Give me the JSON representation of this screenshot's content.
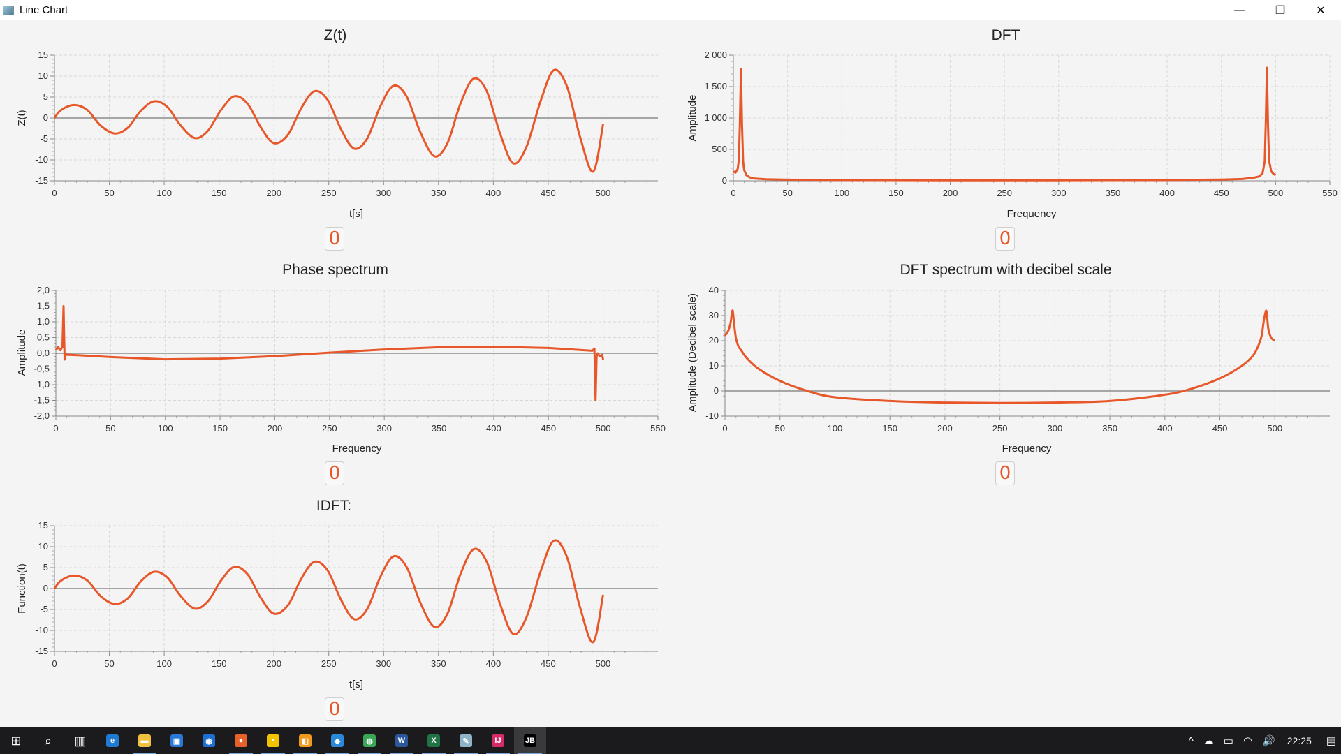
{
  "window": {
    "title": "Line Chart",
    "controls": [
      "—",
      "❐",
      "✕"
    ]
  },
  "colors": {
    "series": "#e8572a",
    "grid": "#d8d8d8",
    "zero_line": "#777777"
  },
  "charts": [
    {
      "id": "zt",
      "title": "Z(t)",
      "xlabel": "t[s]",
      "ylabel": "Z(t)",
      "xticks": [
        "0",
        "50",
        "100",
        "150",
        "200",
        "250",
        "300",
        "350",
        "400",
        "450",
        "500"
      ],
      "yticks": [
        "-15",
        "-10",
        "-5",
        "0",
        "5",
        "10",
        "15"
      ],
      "button": "0"
    },
    {
      "id": "dft",
      "title": "DFT",
      "xlabel": "Frequency",
      "ylabel": "Amplitude",
      "xticks": [
        "0",
        "50",
        "100",
        "150",
        "200",
        "250",
        "300",
        "350",
        "400",
        "450",
        "500",
        "550"
      ],
      "yticks": [
        "0",
        "500",
        "1 000",
        "1 500",
        "2 000"
      ],
      "button": "0"
    },
    {
      "id": "phase",
      "title": "Phase spectrum",
      "xlabel": "Frequency",
      "ylabel": "Amplitude",
      "xticks": [
        "0",
        "50",
        "100",
        "150",
        "200",
        "250",
        "300",
        "350",
        "400",
        "450",
        "500",
        "550"
      ],
      "yticks": [
        "-2,0",
        "-1,5",
        "-1,0",
        "-0,5",
        "0,0",
        "0,5",
        "1,0",
        "1,5",
        "2,0"
      ],
      "button": "0"
    },
    {
      "id": "db",
      "title": "DFT spectrum with decibel scale",
      "xlabel": "Frequency",
      "ylabel": "Amplitude (Decibel scale)",
      "xticks": [
        "0",
        "50",
        "100",
        "150",
        "200",
        "250",
        "300",
        "350",
        "400",
        "450",
        "500"
      ],
      "yticks": [
        "-10",
        "0",
        "10",
        "20",
        "30",
        "40"
      ],
      "button": "0"
    },
    {
      "id": "idft",
      "title": "IDFT:",
      "xlabel": "t[s]",
      "ylabel": "Function(t)",
      "xticks": [
        "0",
        "50",
        "100",
        "150",
        "200",
        "250",
        "300",
        "350",
        "400",
        "450",
        "500"
      ],
      "yticks": [
        "-15",
        "-10",
        "-5",
        "0",
        "5",
        "10",
        "15"
      ],
      "button": "0"
    }
  ],
  "chart_data": [
    {
      "type": "line",
      "title": "Z(t)",
      "xlabel": "t[s]",
      "ylabel": "Z(t)",
      "xlim": [
        0,
        550
      ],
      "ylim": [
        -15,
        15
      ],
      "grid": true,
      "legend": "none",
      "series": [
        {
          "x": [
            0,
            6,
            18,
            30,
            42,
            55,
            67,
            79,
            91,
            103,
            115,
            128,
            140,
            152,
            164,
            176,
            188,
            200,
            213,
            225,
            237,
            249,
            261,
            273,
            285,
            297,
            309,
            321,
            333,
            346,
            358,
            370,
            382,
            394,
            406,
            418,
            430,
            443,
            455,
            467,
            479,
            491,
            500
          ],
          "y": [
            0,
            1.9,
            3.1,
            1.9,
            -1.8,
            -3.7,
            -2.3,
            1.8,
            4.0,
            2.6,
            -1.8,
            -4.8,
            -3.0,
            2.0,
            5.2,
            3.4,
            -2.2,
            -6.0,
            -3.9,
            2.4,
            6.4,
            4.3,
            -2.6,
            -7.3,
            -4.9,
            2.8,
            7.7,
            5.1,
            -3.1,
            -9.1,
            -6.1,
            3.4,
            9.4,
            6.4,
            -3.6,
            -10.8,
            -7.0,
            4.0,
            11.4,
            7.6,
            -4.5,
            -12.8,
            -1.5
          ]
        }
      ]
    },
    {
      "type": "line",
      "title": "DFT",
      "xlabel": "Frequency",
      "ylabel": "Amplitude",
      "xlim": [
        0,
        550
      ],
      "ylim": [
        0,
        2000
      ],
      "grid": true,
      "legend": "none",
      "series": [
        {
          "x": [
            0,
            2,
            4,
            5,
            6,
            7,
            8,
            9,
            10,
            12,
            15,
            20,
            30,
            50,
            100,
            200,
            300,
            400,
            450,
            470,
            480,
            485,
            488,
            490,
            491,
            492,
            493,
            494,
            496,
            498,
            500
          ],
          "y": [
            150,
            130,
            190,
            330,
            900,
            1780,
            880,
            300,
            170,
            90,
            55,
            35,
            25,
            18,
            12,
            9,
            9,
            12,
            20,
            30,
            50,
            70,
            120,
            310,
            960,
            1800,
            900,
            320,
            150,
            110,
            90
          ]
        }
      ]
    },
    {
      "type": "line",
      "title": "Phase spectrum",
      "xlabel": "Frequency",
      "ylabel": "Amplitude",
      "xlim": [
        0,
        550
      ],
      "ylim": [
        -2.0,
        2.0
      ],
      "grid": true,
      "legend": "none",
      "series": [
        {
          "x": [
            0,
            2,
            4,
            6,
            7,
            8,
            9,
            10,
            12,
            20,
            50,
            100,
            150,
            200,
            250,
            300,
            350,
            400,
            450,
            490,
            492,
            493,
            494,
            495,
            496,
            497,
            499,
            500
          ],
          "y": [
            0.1,
            0.2,
            0.1,
            0.2,
            1.5,
            -0.2,
            0.0,
            -0.05,
            -0.05,
            -0.06,
            -0.12,
            -0.19,
            -0.17,
            -0.09,
            0.02,
            0.12,
            0.19,
            0.21,
            0.17,
            0.08,
            0.15,
            -1.5,
            -0.1,
            0.0,
            -0.05,
            -0.1,
            -0.05,
            -0.2
          ]
        }
      ]
    },
    {
      "type": "line",
      "title": "DFT spectrum with decibel scale",
      "xlabel": "Frequency",
      "ylabel": "Amplitude (Decibel scale)",
      "xlim": [
        0,
        550
      ],
      "ylim": [
        -10,
        40
      ],
      "grid": true,
      "legend": "none",
      "series": [
        {
          "x": [
            0,
            3,
            5,
            6,
            7,
            8,
            9,
            10,
            12,
            15,
            20,
            30,
            50,
            75,
            100,
            150,
            200,
            250,
            300,
            350,
            400,
            425,
            450,
            470,
            480,
            485,
            488,
            490,
            492,
            493,
            494,
            495,
            497,
            500
          ],
          "y": [
            22,
            24,
            27,
            30,
            32,
            28,
            24,
            21,
            18,
            16,
            13,
            9,
            4,
            0,
            -2.5,
            -4.0,
            -4.6,
            -4.8,
            -4.6,
            -4.0,
            -1.5,
            1.0,
            5,
            10,
            14,
            18,
            22,
            28,
            32,
            29,
            25,
            23,
            21,
            20
          ]
        }
      ]
    },
    {
      "type": "line",
      "title": "IDFT:",
      "xlabel": "t[s]",
      "ylabel": "Function(t)",
      "xlim": [
        0,
        550
      ],
      "ylim": [
        -15,
        15
      ],
      "grid": true,
      "legend": "none",
      "series": [
        {
          "x": [
            0,
            6,
            18,
            30,
            42,
            55,
            67,
            79,
            91,
            103,
            115,
            128,
            140,
            152,
            164,
            176,
            188,
            200,
            213,
            225,
            237,
            249,
            261,
            273,
            285,
            297,
            309,
            321,
            333,
            346,
            358,
            370,
            382,
            394,
            406,
            418,
            430,
            443,
            455,
            467,
            479,
            491,
            500
          ],
          "y": [
            0,
            1.9,
            3.1,
            1.9,
            -1.8,
            -3.7,
            -2.3,
            1.8,
            4.0,
            2.6,
            -1.8,
            -4.8,
            -3.0,
            2.0,
            5.2,
            3.4,
            -2.2,
            -6.0,
            -3.9,
            2.4,
            6.4,
            4.3,
            -2.6,
            -7.3,
            -4.9,
            2.8,
            7.7,
            5.1,
            -3.1,
            -9.1,
            -6.1,
            3.4,
            9.4,
            6.4,
            -3.6,
            -10.8,
            -7.0,
            4.0,
            11.4,
            7.6,
            -4.5,
            -12.8,
            -1.5
          ]
        }
      ]
    }
  ],
  "taskbar": {
    "clock": "22:25",
    "apps": [
      {
        "name": "start",
        "glyph": "⊞"
      },
      {
        "name": "search",
        "glyph": "⌕"
      },
      {
        "name": "task-view",
        "glyph": "▥"
      },
      {
        "name": "edge",
        "glyph": "e",
        "color": "#1f7ad1"
      },
      {
        "name": "file-explorer",
        "glyph": "▬",
        "color": "#f0c040"
      },
      {
        "name": "store",
        "glyph": "▣",
        "color": "#2a78d6"
      },
      {
        "name": "maps",
        "glyph": "◉",
        "color": "#1f6fd1"
      },
      {
        "name": "firefox",
        "glyph": "●",
        "color": "#e8602a"
      },
      {
        "name": "sticky-notes",
        "glyph": "▪",
        "color": "#f0c400"
      },
      {
        "name": "app-orange",
        "glyph": "◧",
        "color": "#f29a1e"
      },
      {
        "name": "vscode",
        "glyph": "◆",
        "color": "#2a8ad9"
      },
      {
        "name": "chrome",
        "glyph": "◍",
        "color": "#3aa757"
      },
      {
        "name": "word",
        "glyph": "W",
        "color": "#2b579a"
      },
      {
        "name": "excel",
        "glyph": "X",
        "color": "#217346"
      },
      {
        "name": "app-pen",
        "glyph": "✎",
        "color": "#8fb4c8"
      },
      {
        "name": "intellij",
        "glyph": "IJ",
        "color": "#d62b6b"
      },
      {
        "name": "jetbrains",
        "glyph": "JB",
        "color": "#000000"
      }
    ],
    "tray": [
      "^",
      "☁",
      "▭",
      "◠",
      "🔊"
    ],
    "notification_glyph": "▤"
  }
}
